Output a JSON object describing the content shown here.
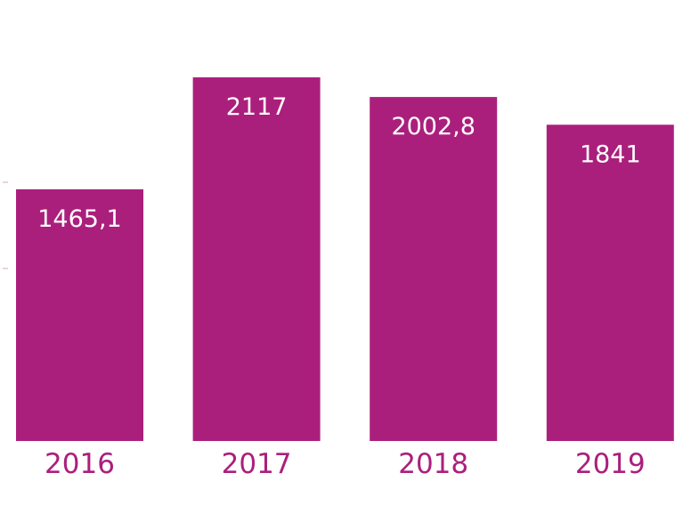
{
  "chart_data": {
    "type": "bar",
    "categories": [
      "2016",
      "2017",
      "2018",
      "2019"
    ],
    "values": [
      1465.1,
      2117,
      2002.8,
      1841
    ],
    "value_labels": [
      "1465,1",
      "2117",
      "2002,8",
      "1841"
    ],
    "title": "",
    "xlabel": "",
    "ylabel": "",
    "ylim": [
      0,
      2500
    ],
    "grid": false,
    "legend": "none",
    "bar_color": "#ab1f7c",
    "category_label_color": "#ab1f7c",
    "value_label_color": "#ffffff"
  }
}
